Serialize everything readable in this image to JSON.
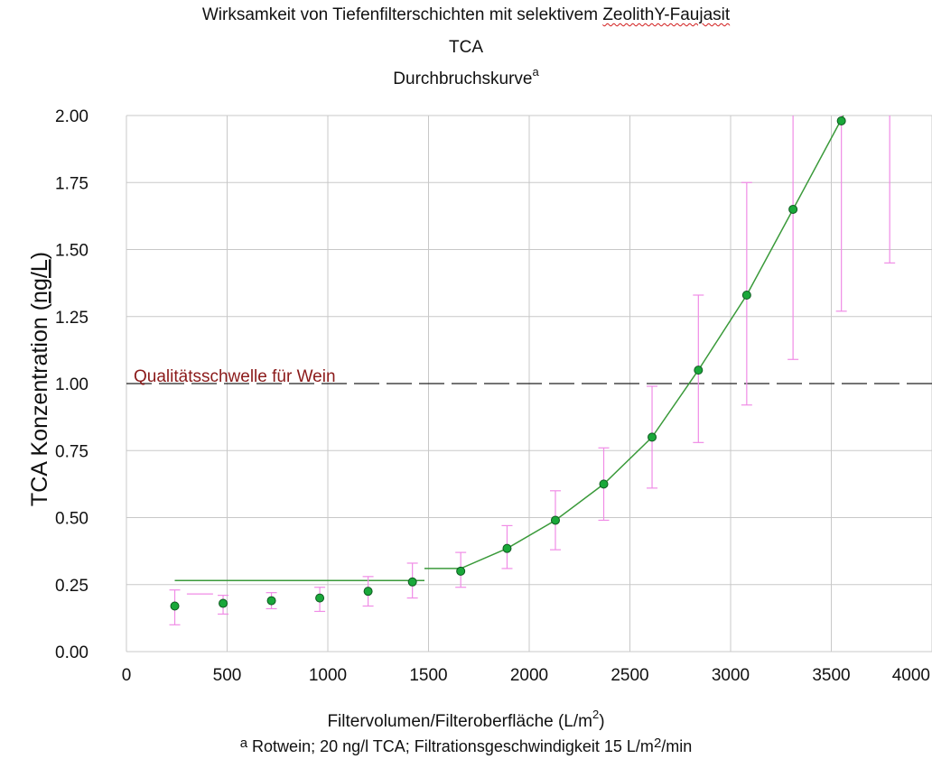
{
  "title": {
    "line1_prefix": "Wirksamkeit von Tiefenfilterschichten mit selektivem ",
    "line1_flagged": "ZeolithY-Faujasit",
    "line2": "TCA",
    "line3": "Durchbruchskurve",
    "line3_sup": "a"
  },
  "axes": {
    "ylabel_prefix": "TCA Konzentration (",
    "ylabel_flagged": "ng/L",
    "ylabel_suffix": ")",
    "xlabel_main": "Filtervolumen/Filteroberfläche (L/m",
    "xlabel_sup": "2",
    "xlabel_end": ")"
  },
  "threshold_label": "Qualitätsschwelle für Wein",
  "footnote": {
    "mark": "a",
    "text": " Rotwein; 20 ng/l TCA; Filtrationsgeschwindigkeit 15 L/m",
    "sup": "2",
    "end": "/min"
  },
  "colors": {
    "points": "#1aa83a",
    "fit_line": "#3a9a3a",
    "error_bars": "#f08ce6",
    "threshold": "#222222",
    "grid": "#c8c8c8",
    "threshold_text": "#8b1a1a",
    "flag_underline": "#d11a1a"
  },
  "chart_data": {
    "type": "scatter",
    "xlim": [
      0,
      4000
    ],
    "ylim": [
      0,
      2.0
    ],
    "x_ticks": [
      0,
      500,
      1000,
      1500,
      2000,
      2500,
      3000,
      3500,
      4000
    ],
    "y_ticks": [
      "0.00",
      "0.25",
      "0.50",
      "0.75",
      "1.00",
      "1.25",
      "1.50",
      "1.75",
      "2.00"
    ],
    "grid": true,
    "threshold_y": 1.0,
    "points": [
      {
        "x": 240,
        "y": 0.17,
        "err_low": 0.1,
        "err_high": 0.23
      },
      {
        "x": 480,
        "y": 0.18,
        "err_low": 0.14,
        "err_high": 0.21
      },
      {
        "x": 720,
        "y": 0.19,
        "err_low": 0.16,
        "err_high": 0.22
      },
      {
        "x": 960,
        "y": 0.2,
        "err_low": 0.15,
        "err_high": 0.24
      },
      {
        "x": 1200,
        "y": 0.225,
        "err_low": 0.17,
        "err_high": 0.28
      },
      {
        "x": 1420,
        "y": 0.26,
        "err_low": 0.2,
        "err_high": 0.33
      },
      {
        "x": 1660,
        "y": 0.3,
        "err_low": 0.24,
        "err_high": 0.37
      },
      {
        "x": 1890,
        "y": 0.385,
        "err_low": 0.31,
        "err_high": 0.47
      },
      {
        "x": 2130,
        "y": 0.49,
        "err_low": 0.38,
        "err_high": 0.6
      },
      {
        "x": 2370,
        "y": 0.625,
        "err_low": 0.49,
        "err_high": 0.76
      },
      {
        "x": 2610,
        "y": 0.8,
        "err_low": 0.61,
        "err_high": 0.99
      },
      {
        "x": 2840,
        "y": 1.05,
        "err_low": 0.78,
        "err_high": 1.33
      },
      {
        "x": 3080,
        "y": 1.33,
        "err_low": 0.92,
        "err_high": 1.75
      },
      {
        "x": 3310,
        "y": 1.65,
        "err_low": 1.09,
        "err_high": 2.0
      },
      {
        "x": 3550,
        "y": 1.98,
        "err_low": 1.27,
        "err_high": 2.0
      },
      {
        "x": 3790,
        "y": null,
        "err_low": 1.45,
        "err_high": 2.0
      }
    ],
    "fit_segments": [
      {
        "points": [
          [
            240,
            0.265
          ],
          [
            1480,
            0.265
          ]
        ]
      },
      {
        "points": [
          [
            1480,
            0.31
          ],
          [
            1660,
            0.31
          ],
          [
            1890,
            0.385
          ],
          [
            2130,
            0.49
          ],
          [
            2370,
            0.625
          ],
          [
            2610,
            0.8
          ],
          [
            2840,
            1.05
          ],
          [
            3080,
            1.33
          ],
          [
            3310,
            1.65
          ],
          [
            3560,
            2.0
          ]
        ]
      }
    ],
    "extra_bar": {
      "x_from": 300,
      "x_to": 430,
      "y": 0.215
    }
  }
}
